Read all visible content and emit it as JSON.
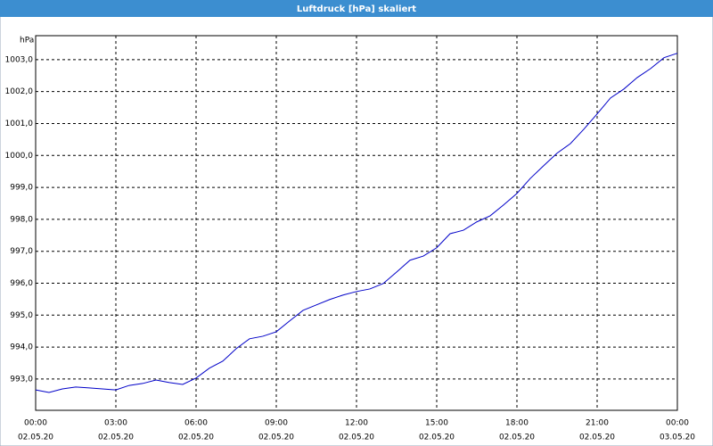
{
  "chart_data": {
    "type": "line",
    "title": "Luftdruck [hPa] skaliert",
    "y_label": "hPa",
    "x": [
      0,
      0.5,
      1,
      1.5,
      2,
      2.5,
      3,
      3.5,
      4,
      4.5,
      5,
      5.5,
      6,
      6.5,
      7,
      7.5,
      8,
      8.5,
      9,
      9.5,
      10,
      10.5,
      11,
      11.5,
      12,
      12.5,
      13,
      13.5,
      14,
      14.5,
      15,
      15.5,
      16,
      16.5,
      17,
      17.5,
      18,
      18.5,
      19,
      19.5,
      20,
      20.5,
      21,
      21.5,
      22,
      22.5,
      23,
      23.5,
      24
    ],
    "series": [
      {
        "name": "Luftdruck",
        "color": "#0000c8",
        "values": [
          992.66,
          992.58,
          992.69,
          992.75,
          992.72,
          992.69,
          992.66,
          992.8,
          992.86,
          992.97,
          992.89,
          992.83,
          993.03,
          993.34,
          993.56,
          993.95,
          994.26,
          994.34,
          994.48,
          994.82,
          995.15,
          995.32,
          995.49,
          995.63,
          995.74,
          995.82,
          995.99,
          996.35,
          996.72,
          996.85,
          997.11,
          997.55,
          997.66,
          997.92,
          998.11,
          998.45,
          998.81,
          999.28,
          999.68,
          1000.07,
          1000.37,
          1000.82,
          1001.3,
          1001.8,
          1002.08,
          1002.44,
          1002.72,
          1003.06,
          1003.2
        ]
      }
    ],
    "xlim": [
      0,
      24
    ],
    "xticks": [
      {
        "value": 0,
        "label": "00:00",
        "date": "02.05.20"
      },
      {
        "value": 3,
        "label": "03:00",
        "date": "02.05.20"
      },
      {
        "value": 6,
        "label": "06:00",
        "date": "02.05.20"
      },
      {
        "value": 9,
        "label": "09:00",
        "date": "02.05.20"
      },
      {
        "value": 12,
        "label": "12:00",
        "date": "02.05.20"
      },
      {
        "value": 15,
        "label": "15:00",
        "date": "02.05.20"
      },
      {
        "value": 18,
        "label": "18:00",
        "date": "02.05.20"
      },
      {
        "value": 21,
        "label": "21:00",
        "date": "02.05.20"
      },
      {
        "value": 24,
        "label": "00:00",
        "date": "03.05.20"
      }
    ],
    "ylim": [
      992.02,
      1003.75
    ],
    "yticks": [
      {
        "value": 993,
        "label": "993,0"
      },
      {
        "value": 994,
        "label": "994,0"
      },
      {
        "value": 995,
        "label": "995,0"
      },
      {
        "value": 996,
        "label": "996,0"
      },
      {
        "value": 997,
        "label": "997,0"
      },
      {
        "value": 998,
        "label": "998,0"
      },
      {
        "value": 999,
        "label": "999,0"
      },
      {
        "value": 1000,
        "label": "1000,0"
      },
      {
        "value": 1001,
        "label": "1001,0"
      },
      {
        "value": 1002,
        "label": "1002,0"
      },
      {
        "value": 1003,
        "label": "1003,0"
      }
    ],
    "grid": true
  }
}
